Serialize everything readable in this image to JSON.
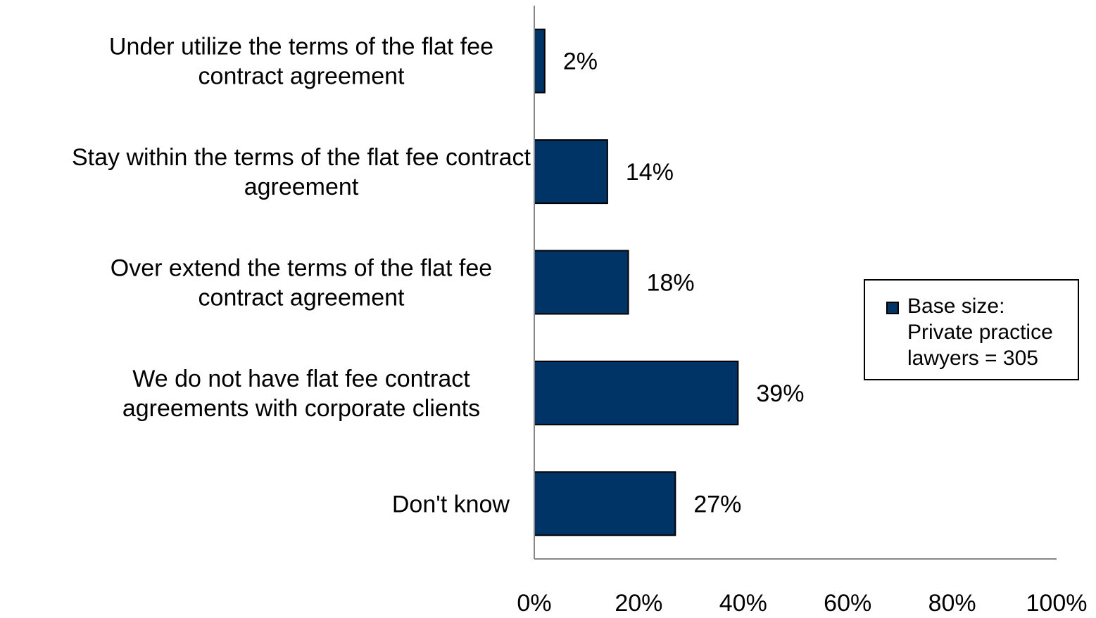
{
  "chart_data": {
    "type": "bar",
    "orientation": "horizontal",
    "title": "",
    "xlabel": "",
    "ylabel": "",
    "categories": [
      [
        "Under utilize the terms of the flat fee",
        "contract agreement"
      ],
      [
        "Stay within the terms of the flat fee contract",
        "agreement"
      ],
      [
        "Over extend the terms of the flat fee",
        "contract agreement"
      ],
      [
        "We do not have flat fee contract",
        "agreements with corporate clients"
      ],
      [
        "Don't know"
      ]
    ],
    "series": [
      {
        "name": "Base size: Private practice lawyers = 305",
        "values": [
          2,
          14,
          18,
          39,
          27
        ],
        "value_labels": [
          "2%",
          "14%",
          "18%",
          "39%",
          "27%"
        ],
        "color": "#003366"
      }
    ],
    "xlim": [
      0,
      100
    ],
    "x_ticks": [
      0,
      20,
      40,
      60,
      80,
      100
    ],
    "x_tick_labels": [
      "0%",
      "20%",
      "40%",
      "60%",
      "80%",
      "100%"
    ],
    "grid": false,
    "legend": {
      "placement": "right",
      "lines": [
        "Base size:",
        "Private practice",
        "lawyers = 305"
      ]
    }
  }
}
